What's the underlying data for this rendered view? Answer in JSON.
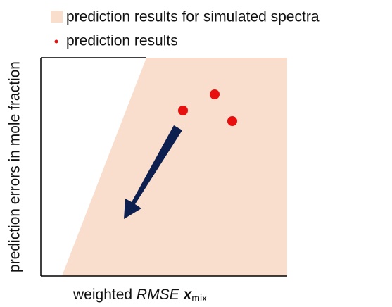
{
  "legend": {
    "items": [
      {
        "label": "prediction results for simulated spectra"
      },
      {
        "label": "prediction results"
      }
    ]
  },
  "axes": {
    "x_label": {
      "prefix": "weighted ",
      "italic": "RMSE",
      "bold": "x",
      "subscript": "mix"
    },
    "y_label": "prediction errors in mole fraction"
  }
}
